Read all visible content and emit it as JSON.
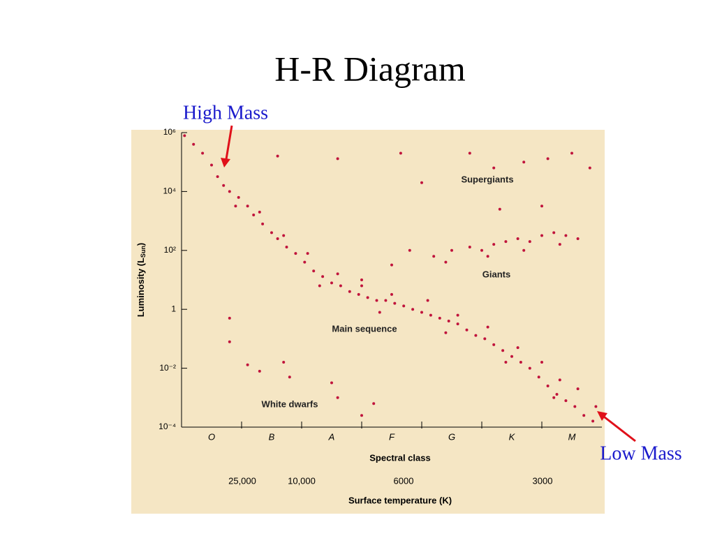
{
  "chart_data": {
    "type": "scatter",
    "title": "H-R Diagram",
    "xlabel": "Spectral class",
    "x2label": "Surface temperature (K)",
    "ylabel": [
      "Luminosity (L",
      "Sun",
      ")"
    ],
    "categories": [
      "O",
      "B",
      "A",
      "F",
      "G",
      "K",
      "M"
    ],
    "temperature_labels": [
      "25,000",
      "10,000",
      "6000",
      "3000"
    ],
    "log_y": true,
    "ylim": [
      0.0001,
      1000000
    ],
    "xlim": [
      0,
      7
    ],
    "yticks": [
      {
        "value": 1000000,
        "label": "10⁶"
      },
      {
        "value": 10000,
        "label": "10⁴"
      },
      {
        "value": 100,
        "label": "10²"
      },
      1,
      {
        "value": 0.01,
        "label": "10⁻²"
      },
      {
        "value": 0.0001,
        "label": "10⁻⁴"
      }
    ],
    "annotations": [
      "Supergiants",
      "Giants",
      "Main sequence",
      "White dwarfs",
      "High Mass",
      "Low Mass"
    ],
    "background": "#f5e6c4",
    "series": [
      {
        "color": "#c0143c",
        "x": [
          0.05,
          0.2,
          0.35,
          0.5,
          0.6,
          0.7,
          0.8,
          0.95,
          1.1,
          1.2,
          1.35,
          1.5,
          1.6,
          1.75,
          1.9,
          2.05,
          2.2,
          2.35,
          2.5,
          2.65,
          2.8,
          2.95,
          3.1,
          3.25,
          3.4,
          3.55,
          3.7,
          3.85,
          4.0,
          4.15,
          4.3,
          4.45,
          4.6,
          4.75,
          4.9,
          5.05,
          5.2,
          5.35,
          5.5,
          5.65,
          5.8,
          5.95,
          6.1,
          6.25,
          6.4,
          6.55,
          6.7,
          6.85,
          0.9,
          1.3,
          1.7,
          2.1,
          2.6,
          3.0,
          3.5,
          4.1,
          4.6,
          5.1,
          5.6,
          6.0,
          6.3,
          6.6,
          6.9,
          4.4,
          5.4,
          6.2,
          3.3,
          2.3,
          4.2,
          4.5,
          4.8,
          5.0,
          5.2,
          5.4,
          5.6,
          5.8,
          6.0,
          6.2,
          6.4,
          6.6,
          4.4,
          5.1,
          5.7,
          6.3,
          3.5,
          3.0,
          3.8,
          3.65,
          4.8,
          5.2,
          5.7,
          6.1,
          6.5,
          6.8,
          4.0,
          6.0,
          5.3,
          2.6,
          1.6,
          0.8,
          0.8,
          1.1,
          1.3,
          1.7,
          1.8,
          2.5,
          2.6,
          3.2,
          3.0
        ],
        "values": [
          790000,
          400000,
          200000,
          79000,
          32000,
          16000,
          10000,
          6300,
          3200,
          1600,
          790,
          400,
          250,
          130,
          79,
          40,
          20,
          13,
          7.9,
          6.3,
          4,
          3.2,
          2.5,
          2,
          2,
          1.6,
          1.3,
          1,
          0.79,
          0.63,
          0.5,
          0.4,
          0.32,
          0.2,
          0.13,
          0.1,
          0.063,
          0.04,
          0.025,
          0.016,
          0.01,
          0.005,
          0.0025,
          0.0013,
          0.00079,
          0.0005,
          0.00025,
          0.00016,
          3200,
          2000,
          320,
          79,
          16,
          6.3,
          3.2,
          2,
          0.63,
          0.25,
          0.05,
          0.016,
          0.004,
          0.002,
          0.0005,
          0.16,
          0.016,
          0.001,
          0.79,
          6.3,
          63,
          100,
          130,
          100,
          160,
          200,
          250,
          200,
          320,
          400,
          320,
          250,
          40,
          63,
          100,
          160,
          32,
          10,
          100,
          200000,
          200000,
          63000,
          100000,
          130000,
          200000,
          63000,
          20000,
          3200,
          2500,
          130000,
          160000,
          0.5,
          0.079,
          0.013,
          0.0079,
          0.016,
          0.005,
          0.0032,
          0.001,
          0.00063,
          0.00025
        ]
      }
    ]
  }
}
